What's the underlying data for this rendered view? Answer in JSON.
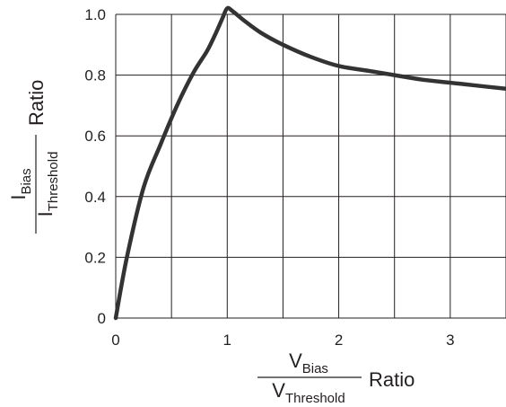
{
  "chart_data": {
    "type": "line",
    "title": "",
    "xlabel": {
      "numerator_main": "V",
      "numerator_sub": "Bias",
      "denominator_main": "V",
      "denominator_sub": "Threshold",
      "suffix": "Ratio"
    },
    "ylabel": {
      "numerator_main": "I",
      "numerator_sub": "Bias",
      "denominator_main": "I",
      "denominator_sub": "Threshold",
      "suffix": "Ratio"
    },
    "xlim": [
      0,
      3.5
    ],
    "ylim": [
      0,
      1.0
    ],
    "x_ticks": [
      0,
      1,
      2,
      3
    ],
    "x_tick_labels": [
      "0",
      "1",
      "2",
      "3"
    ],
    "y_ticks": [
      0,
      0.2,
      0.4,
      0.6,
      0.8,
      1.0
    ],
    "y_tick_labels": [
      "0",
      "0.2",
      "0.4",
      "0.6",
      "0.8",
      "1.0"
    ],
    "grid": true,
    "grid_x_step": 0.5,
    "grid_y_step": 0.2,
    "line_color": "#333333",
    "grid_color": "#231f20",
    "series": [
      {
        "x": [
          0,
          0.1,
          0.25,
          0.4,
          0.55,
          0.7,
          0.82,
          0.9,
          0.96,
          1.0,
          1.05,
          1.15,
          1.3,
          1.5,
          1.75,
          2.0,
          2.25,
          2.5,
          2.75,
          3.0,
          3.25,
          3.5
        ],
        "y": [
          0,
          0.2,
          0.43,
          0.57,
          0.7,
          0.81,
          0.88,
          0.94,
          0.99,
          1.02,
          1.01,
          0.98,
          0.94,
          0.9,
          0.86,
          0.83,
          0.815,
          0.8,
          0.785,
          0.775,
          0.765,
          0.755
        ]
      }
    ]
  }
}
